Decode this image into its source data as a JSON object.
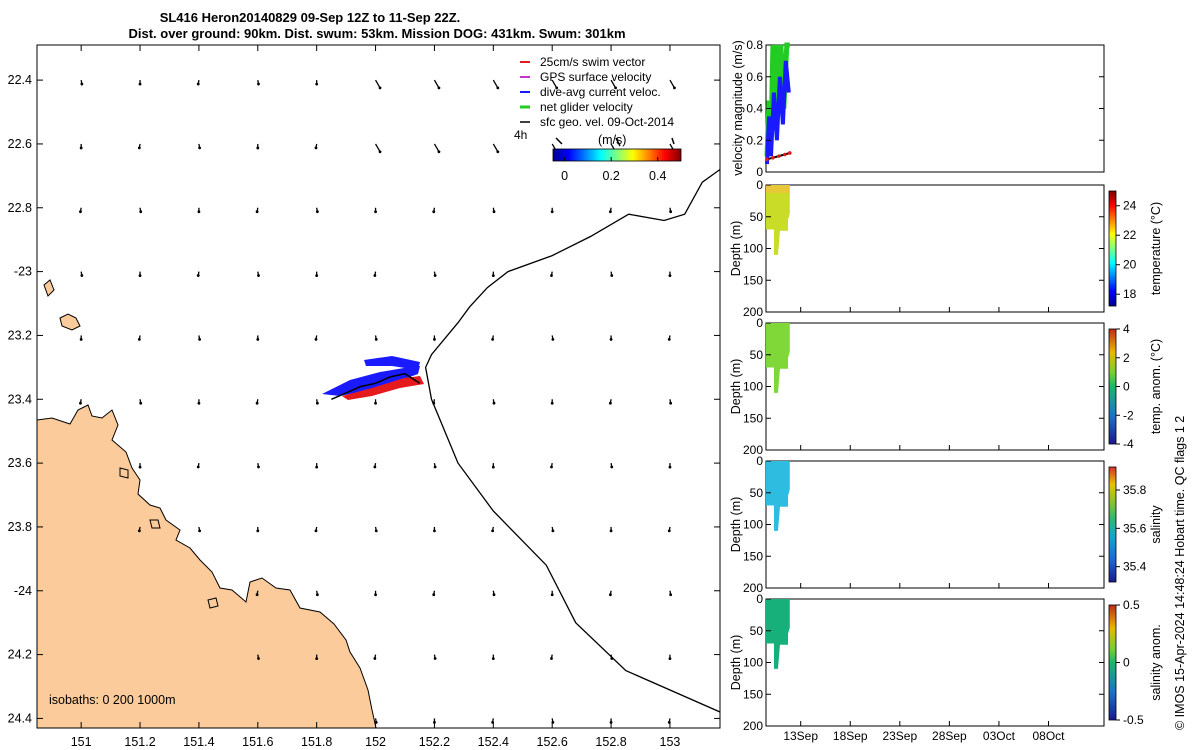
{
  "title": {
    "line1": "SL416 Heron20140829 09-Sep 12Z to 11-Sep 22Z.",
    "line2": "Dist. over ground: 90km. Dist. swum: 53km. Mission DOG: 431km. Swum: 301km"
  },
  "colors": {
    "land": "#fbcb9b",
    "swim": "#e41a1c",
    "gps": "#cc33cc",
    "dive": "#1a1aff",
    "net": "#22cc22",
    "sfc": "#000000"
  },
  "chart_data": [
    {
      "type": "scatter",
      "name": "map",
      "xlim": [
        150.85,
        153.17
      ],
      "ylim": [
        -24.43,
        -22.29
      ],
      "x_ticks": [
        151,
        151.2,
        151.4,
        151.6,
        151.8,
        152,
        152.2,
        152.4,
        152.6,
        152.8,
        153
      ],
      "x_tick_labels": [
        "151",
        "151.2",
        "151.4",
        "151.6",
        "151.8",
        "152",
        "152.2",
        "152.4",
        "152.6",
        "152.8",
        "153"
      ],
      "y_ticks": [
        -22.4,
        -22.6,
        -22.8,
        -23,
        -23.2,
        -23.4,
        -23.6,
        -23.8,
        -24,
        -24.2,
        -24.4
      ],
      "y_tick_labels": [
        "22.4",
        "22.6",
        "22.8",
        "-23",
        "23.2",
        "23.4",
        "23.6",
        "23.8",
        "-24",
        "24.2",
        "24.4"
      ],
      "legend": {
        "position": "top-right",
        "items": [
          {
            "label": "25cm/s swim vector",
            "color": "#e41a1c"
          },
          {
            "label": "GPS surface velocity",
            "color": "#cc33cc"
          },
          {
            "label": "dive-avg current veloc.",
            "color": "#1a1aff"
          },
          {
            "label": "net glider velocity",
            "color": "#22cc22"
          },
          {
            "label": "sfc geo. vel. 09-Oct-2014",
            "color": "#000000"
          }
        ],
        "time_label": "4h"
      },
      "colorbar": {
        "title": "(m/s)",
        "ticks": [
          "0",
          "0.2",
          "0.4"
        ],
        "range": [
          -0.05,
          0.5
        ]
      },
      "isobaths_label": "isobaths: 0   200   1000m",
      "track": {
        "lon": [
          151.85,
          151.9,
          151.95,
          152.0,
          152.05,
          152.1,
          152.15
        ],
        "lat": [
          -23.4,
          -23.38,
          -23.36,
          -23.35,
          -23.33,
          -23.32,
          -23.35
        ]
      },
      "shelf_edge": {
        "lon": [
          153.17,
          153.11,
          153.05,
          152.98,
          152.86,
          152.73,
          152.6,
          152.45,
          152.38,
          152.32,
          152.28,
          152.19,
          152.17,
          152.19,
          152.28,
          152.4,
          152.58,
          152.68,
          152.85,
          153.17
        ],
        "lat": [
          -22.68,
          -22.72,
          -22.82,
          -22.84,
          -22.82,
          -22.89,
          -22.95,
          -23.0,
          -23.05,
          -23.11,
          -23.16,
          -23.26,
          -23.3,
          -23.4,
          -23.6,
          -23.75,
          -23.92,
          -24.1,
          -24.25,
          -24.38
        ]
      },
      "current_grid": {
        "lon": [
          151.0,
          151.2,
          151.4,
          151.6,
          151.8,
          152.0,
          152.2,
          152.4,
          152.6,
          152.8,
          153.0
        ],
        "lat": [
          -22.4,
          -22.6,
          -22.8,
          -23.0,
          -23.2,
          -23.4,
          -23.6,
          -23.8,
          -24.0,
          -24.2,
          -24.4
        ]
      }
    },
    {
      "type": "line",
      "name": "velocity",
      "ylabel": "velocity magnitude (m/s)",
      "ylim": [
        0,
        0.8
      ],
      "y_ticks": [
        0,
        0.2,
        0.4,
        0.6,
        0.8
      ],
      "y_tick_labels": [
        "0",
        "0.2",
        "0.4",
        "0.6",
        "0.8"
      ],
      "x_day_range": [
        9.5,
        43.6
      ],
      "series": [
        {
          "name": "net glider velocity",
          "days": [
            9.6,
            9.8,
            10.0,
            10.2,
            10.4,
            10.6,
            10.8,
            11.0,
            11.3,
            11.6,
            11.9
          ],
          "values": [
            0.1,
            0.45,
            0.2,
            0.8,
            0.3,
            0.8,
            0.6,
            0.8,
            0.4,
            0.8,
            0.8
          ]
        },
        {
          "name": "dive-avg current veloc.",
          "days": [
            9.6,
            9.8,
            10.0,
            10.3,
            10.6,
            10.9,
            11.2,
            11.5,
            11.8
          ],
          "values": [
            0.05,
            0.35,
            0.1,
            0.5,
            0.2,
            0.6,
            0.3,
            0.7,
            0.5
          ]
        },
        {
          "name": "swim vector",
          "days": [
            9.6,
            10.2,
            10.8,
            11.4,
            11.9
          ],
          "values": [
            0.08,
            0.09,
            0.1,
            0.11,
            0.12
          ]
        }
      ]
    },
    {
      "type": "heatmap",
      "name": "temperature",
      "ylabel": "Depth (m)",
      "ylim": [
        0,
        200
      ],
      "y_ticks": [
        0,
        50,
        100,
        150,
        200
      ],
      "y_tick_labels": [
        "0",
        "50",
        "100",
        "150",
        "200"
      ],
      "colorbar_label": "temperature (°C)",
      "colorbar_range": [
        17.2,
        25
      ],
      "colorbar_ticks": [
        "24",
        "22",
        "20",
        "18"
      ],
      "colorbar_tick_values": [
        24,
        22,
        20,
        18
      ],
      "data_range_days": [
        9.5,
        11.9
      ],
      "max_depth_m": 110,
      "typical_value": 23.2
    },
    {
      "type": "heatmap",
      "name": "temp-anomaly",
      "ylabel": "Depth (m)",
      "ylim": [
        0,
        200
      ],
      "y_ticks": [
        0,
        50,
        100,
        150,
        200
      ],
      "y_tick_labels": [
        "0",
        "50",
        "100",
        "150",
        "200"
      ],
      "colorbar_label": "temp. anom. (°C)",
      "colorbar_range": [
        -4,
        4
      ],
      "colorbar_ticks": [
        "4",
        "2",
        "0",
        "-2",
        "-4"
      ],
      "colorbar_tick_values": [
        4,
        2,
        0,
        -2,
        -4
      ],
      "data_range_days": [
        9.5,
        11.9
      ],
      "max_depth_m": 110,
      "typical_value": 0.8
    },
    {
      "type": "heatmap",
      "name": "salinity",
      "ylabel": "Depth (m)",
      "ylim": [
        0,
        200
      ],
      "y_ticks": [
        0,
        50,
        100,
        150,
        200
      ],
      "y_tick_labels": [
        "0",
        "50",
        "100",
        "150",
        "200"
      ],
      "colorbar_label": "salinity",
      "colorbar_range": [
        35.32,
        35.92
      ],
      "colorbar_ticks": [
        "35.8",
        "35.6",
        "35.4"
      ],
      "colorbar_tick_values": [
        35.8,
        35.6,
        35.4
      ],
      "data_range_days": [
        9.5,
        11.9
      ],
      "max_depth_m": 110,
      "typical_value": 35.56
    },
    {
      "type": "heatmap",
      "name": "salinity-anomaly",
      "ylabel": "Depth (m)",
      "ylim": [
        0,
        200
      ],
      "y_ticks": [
        0,
        50,
        100,
        150,
        200
      ],
      "y_tick_labels": [
        "0",
        "50",
        "100",
        "150",
        "200"
      ],
      "colorbar_label": "salinity anom.",
      "colorbar_range": [
        -0.5,
        0.5
      ],
      "colorbar_ticks": [
        "0.5",
        "0",
        "-0.5"
      ],
      "colorbar_tick_values": [
        0.5,
        0,
        -0.5
      ],
      "data_range_days": [
        9.5,
        11.9
      ],
      "max_depth_m": 110,
      "typical_value": -0.12,
      "x_ticks_days": [
        13,
        18,
        23,
        28,
        33,
        38
      ],
      "x_tick_labels": [
        "13Sep",
        "18Sep",
        "23Sep",
        "28Sep",
        "03Oct",
        "08Oct"
      ]
    }
  ],
  "footer": {
    "credit": "© IMOS 15-Apr-2024 14:48:24 Hobart time. QC flags 1  2"
  }
}
